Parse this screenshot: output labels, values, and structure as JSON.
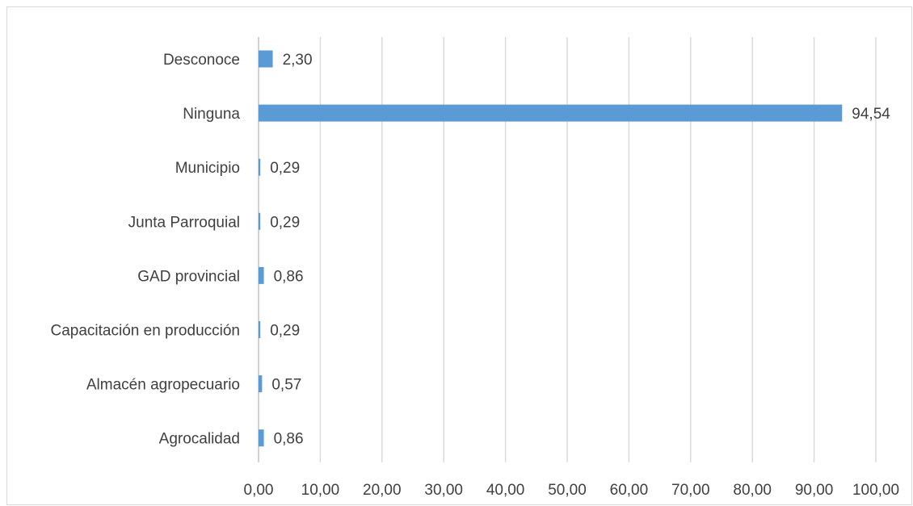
{
  "chart_data": {
    "type": "bar",
    "orientation": "horizontal",
    "categories": [
      "Desconoce",
      "Ninguna",
      "Municipio",
      "Junta Parroquial",
      "GAD provincial",
      "Capacitación en producción",
      "Almacén agropecuario",
      "Agrocalidad"
    ],
    "values": [
      2.3,
      94.54,
      0.29,
      0.29,
      0.86,
      0.29,
      0.57,
      0.86
    ],
    "value_labels": [
      "2,30",
      "94,54",
      "0,29",
      "0,29",
      "0,86",
      "0,29",
      "0,57",
      "0,86"
    ],
    "xlim": [
      0,
      100
    ],
    "x_ticks": [
      0,
      10,
      20,
      30,
      40,
      50,
      60,
      70,
      80,
      90,
      100
    ],
    "x_tick_labels": [
      "0,00",
      "10,00",
      "20,00",
      "30,00",
      "40,00",
      "50,00",
      "60,00",
      "70,00",
      "80,00",
      "90,00",
      "100,00"
    ],
    "grid": "vertical",
    "bar_color": "#5b9bd5",
    "grid_color": "#d9d9d9",
    "text_color": "#404040"
  }
}
